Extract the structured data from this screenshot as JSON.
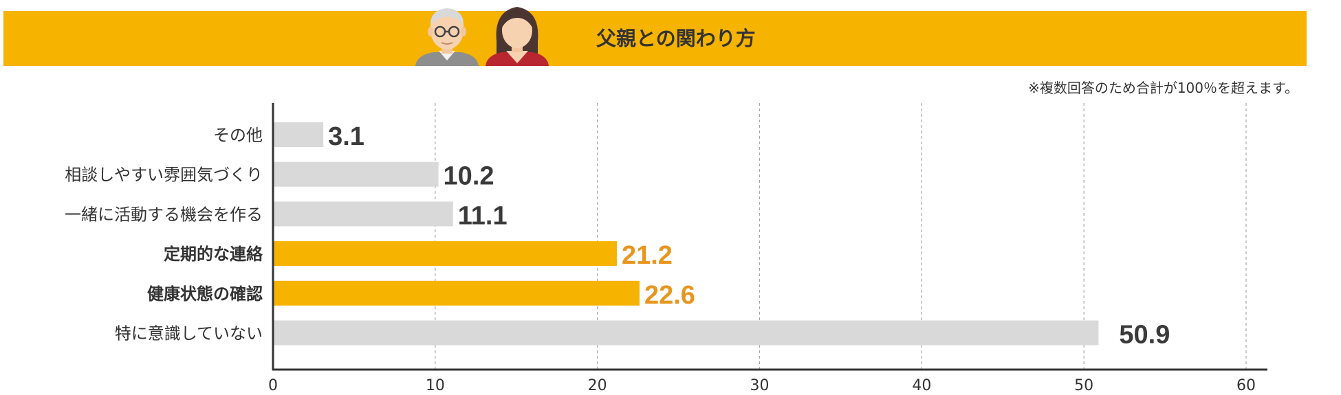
{
  "header": {
    "title": "父親との関わり方",
    "banner_color": "#F6B300"
  },
  "note": "※複数回答のため合計が100％を超えます。",
  "chart_data": {
    "type": "bar",
    "orientation": "horizontal",
    "categories": [
      "その他",
      "相談しやすい雰囲気づくり",
      "一緒に活動する機会を作る",
      "定期的な連絡",
      "健康状態の確認",
      "特に意識していない"
    ],
    "values": [
      3.1,
      10.2,
      11.1,
      21.2,
      22.6,
      50.9
    ],
    "highlighted": [
      false,
      false,
      false,
      true,
      true,
      false
    ],
    "xlim": [
      0,
      60
    ],
    "xticks": [
      0,
      10,
      20,
      30,
      40,
      50,
      60
    ],
    "grid": "vertical-dashed",
    "colors": {
      "normal_bar": "#D9D9D9",
      "highlight_bar": "#F6B300",
      "normal_label": "#3A3A3A",
      "highlight_label": "#E8961E"
    }
  }
}
